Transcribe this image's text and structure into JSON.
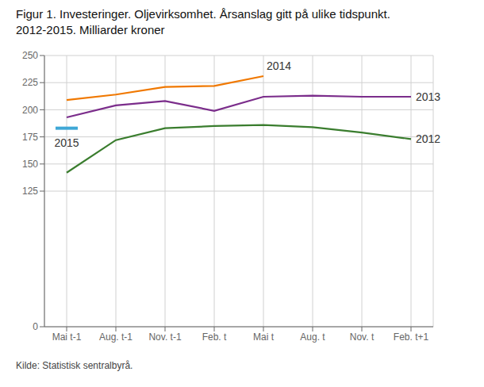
{
  "chart_data": {
    "type": "line",
    "title": "Figur 1. Investeringer. Oljevirksomhet. Årsanslag gitt på ulike tidspunkt.",
    "subtitle": "2012-2015. Milliarder kroner",
    "source": "Kilde: Statistisk sentralbyrå.",
    "categories": [
      "Mai t-1",
      "Aug. t-1",
      "Nov. t-1",
      "Feb. t",
      "Mai t",
      "Aug. t",
      "Nov. t",
      "Feb. t+1"
    ],
    "series": [
      {
        "name": "2012",
        "color": "#3a7d2e",
        "marker": "none",
        "values": [
          142,
          172,
          183,
          185,
          186,
          184,
          179,
          173
        ]
      },
      {
        "name": "2013",
        "color": "#7b2d8b",
        "marker": "none",
        "values": [
          193,
          204,
          208,
          199,
          212,
          213,
          212,
          212
        ]
      },
      {
        "name": "2014",
        "color": "#f07800",
        "marker": "none",
        "values": [
          209,
          214,
          221,
          222,
          231,
          null,
          null,
          null
        ]
      },
      {
        "name": "2015",
        "color": "#3fa7d6",
        "marker": "dash",
        "values": [
          183,
          null,
          null,
          null,
          null,
          null,
          null,
          null
        ]
      }
    ],
    "ylim": [
      0,
      250
    ],
    "yticks": [
      0,
      125,
      150,
      175,
      200,
      225,
      250
    ],
    "grid": true
  }
}
